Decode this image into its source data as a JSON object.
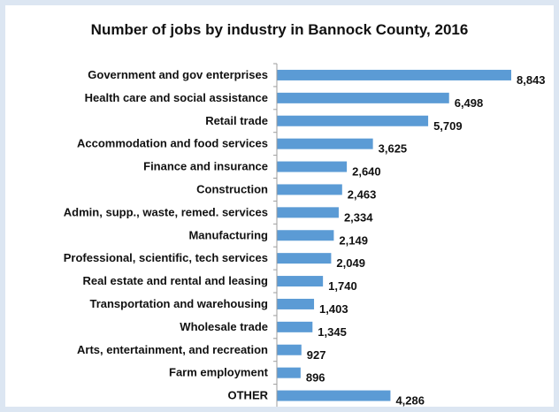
{
  "chart_data": {
    "type": "bar",
    "orientation": "horizontal",
    "title": "Number of jobs by industry in Bannock County, 2016",
    "categories": [
      "Government and gov enterprises",
      "Health care and social assistance",
      "Retail trade",
      "Accommodation and food services",
      "Finance and insurance",
      "Construction",
      "Admin, supp., waste, remed. services",
      "Manufacturing",
      "Professional, scientific, tech services",
      "Real estate and rental and leasing",
      "Transportation and warehousing",
      "Wholesale trade",
      "Arts, entertainment, and recreation",
      "Farm employment",
      "OTHER"
    ],
    "values": [
      8843,
      6498,
      5709,
      3625,
      2640,
      2463,
      2334,
      2149,
      2049,
      1740,
      1403,
      1345,
      927,
      896,
      4286
    ],
    "value_labels": [
      "8,843",
      "6,498",
      "5,709",
      "3,625",
      "2,640",
      "2,463",
      "2,334",
      "2,149",
      "2,049",
      "1,740",
      "1,403",
      "1,345",
      "927",
      "896",
      "4,286"
    ],
    "xlim": [
      0,
      8843
    ],
    "grid": false,
    "legend": "none",
    "bar_color": "#5b9bd5",
    "axis_color": "#9e9e9e"
  }
}
